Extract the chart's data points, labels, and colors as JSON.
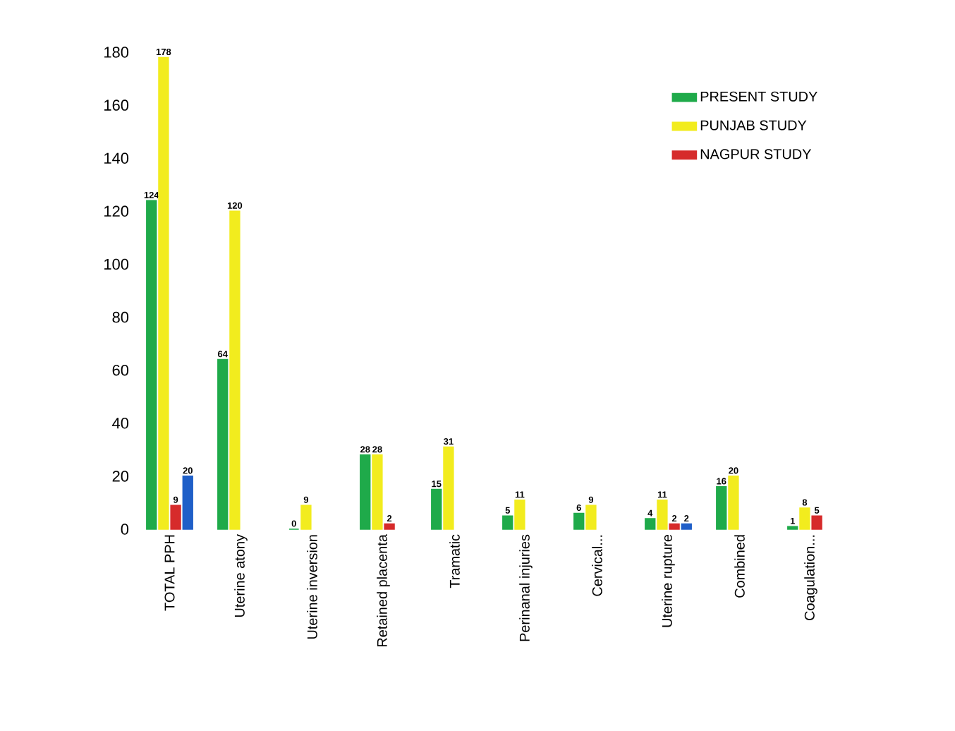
{
  "chart_data": {
    "type": "bar",
    "categories": [
      "TOTAL PPH",
      "Uterine atony",
      "Uterine inversion",
      "Retained placenta",
      "Tramatic",
      "Perinanal injuries",
      "Cervical...",
      "Uterine rupture",
      "Combined",
      "Coagulation..."
    ],
    "series": [
      {
        "name": "PRESENT STUDY",
        "color": "#1faa4a",
        "values": [
          124,
          64,
          0,
          28,
          15,
          5,
          6,
          4,
          16,
          1
        ]
      },
      {
        "name": "PUNJAB STUDY",
        "color": "#f2ec1e",
        "values": [
          178,
          120,
          9,
          28,
          31,
          11,
          9,
          11,
          20,
          8
        ]
      },
      {
        "name": "NAGPUR STUDY",
        "color": "#d62b2b",
        "values": [
          9,
          null,
          null,
          2,
          null,
          null,
          null,
          2,
          null,
          5
        ]
      },
      {
        "color": "#1f5fc8",
        "values": [
          20,
          null,
          null,
          null,
          null,
          null,
          null,
          2,
          null,
          null
        ]
      }
    ],
    "ylim": [
      0,
      180
    ],
    "yticks": [
      0,
      20,
      40,
      60,
      80,
      100,
      120,
      140,
      160,
      180
    ],
    "legend": "top right",
    "data_labels": true
  }
}
